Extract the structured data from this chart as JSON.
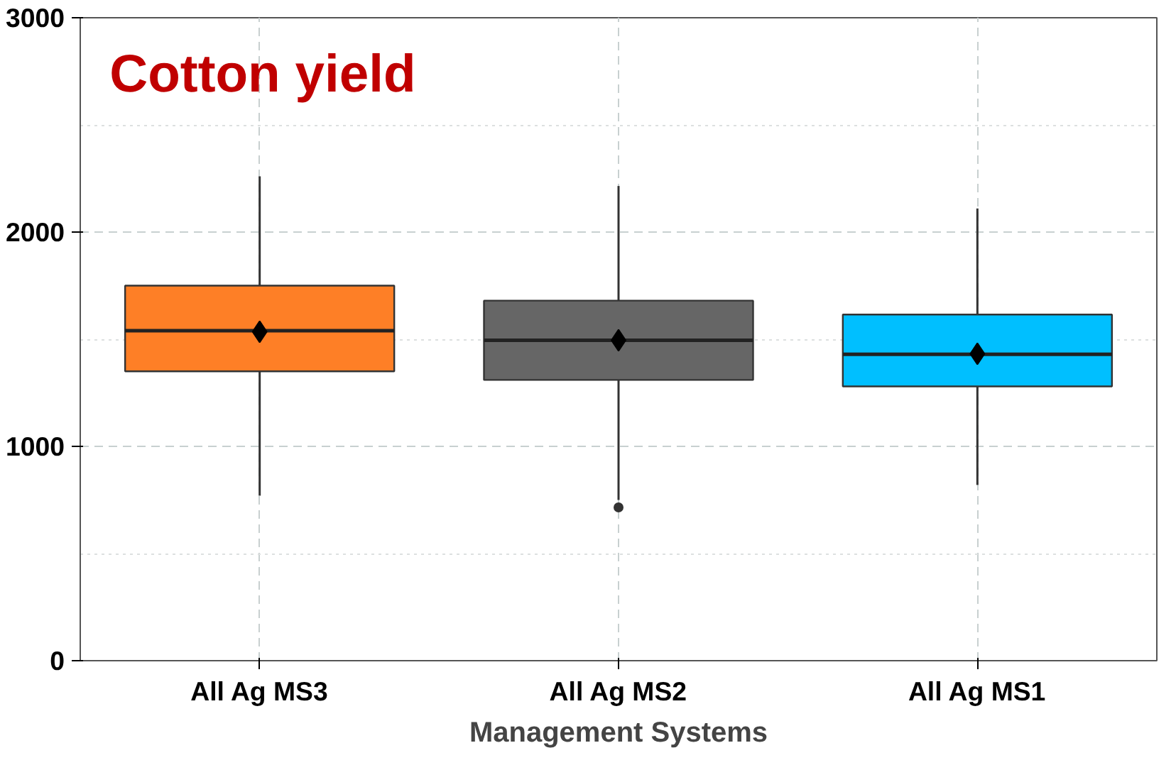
{
  "chart_data": {
    "type": "box",
    "title": "Cotton yield",
    "xlabel": "Management Systems",
    "categories": [
      "All Ag MS3",
      "All Ag MS2",
      "All Ag MS1"
    ],
    "colors": [
      "#fe7f26",
      "#666666",
      "#00bfff"
    ],
    "boxes": [
      {
        "low": 770,
        "q1": 1350,
        "median": 1540,
        "q3": 1750,
        "high": 2260,
        "mean": 1535
      },
      {
        "low": 750,
        "q1": 1310,
        "median": 1495,
        "q3": 1680,
        "high": 2215,
        "mean": 1495,
        "outliers": [
          715
        ]
      },
      {
        "low": 820,
        "q1": 1280,
        "median": 1430,
        "q3": 1615,
        "high": 2110,
        "mean": 1432
      }
    ],
    "ylim": [
      0,
      3000
    ],
    "yticks": [
      0,
      1000,
      2000,
      3000
    ],
    "grid": true,
    "marker": "diamond"
  }
}
